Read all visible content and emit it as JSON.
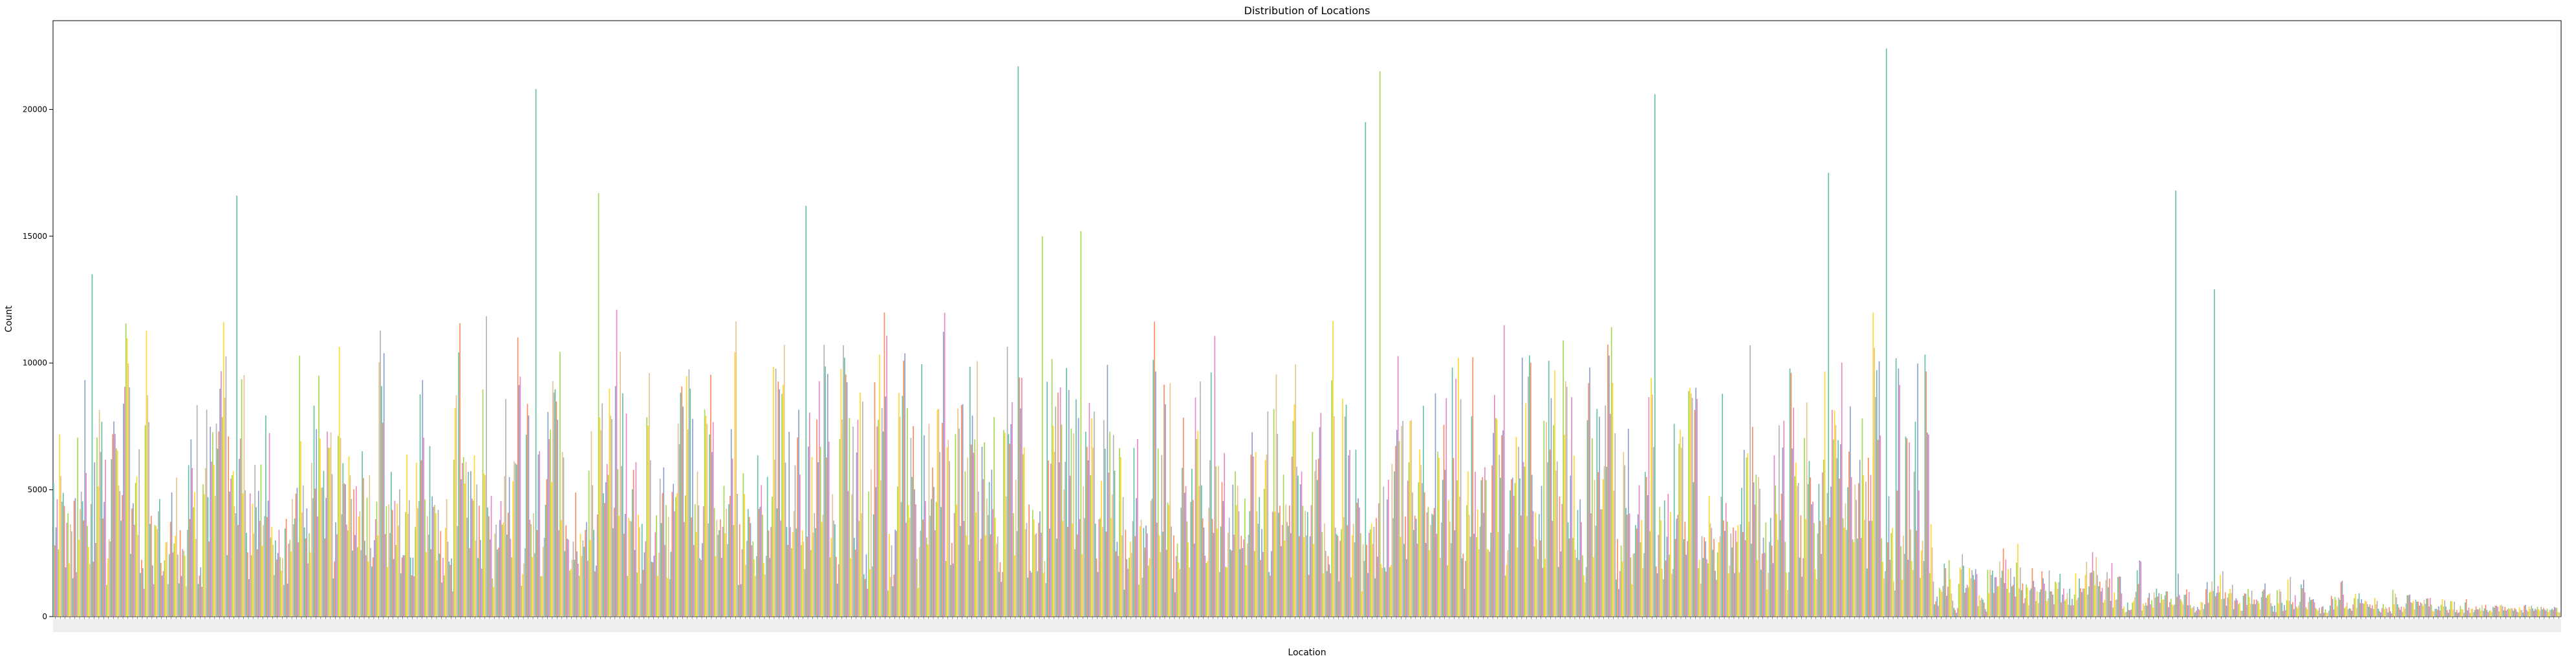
{
  "chart_data": {
    "type": "bar",
    "title": "Distribution of Locations",
    "xlabel": "Location",
    "ylabel": "Count",
    "ylim": [
      0,
      23500
    ],
    "yticks": [
      0,
      5000,
      10000,
      15000,
      20000
    ],
    "grid": false,
    "legend": "none",
    "palette": [
      "#66c2a5",
      "#fc8d62",
      "#8da0cb",
      "#e78ac3",
      "#a6d854",
      "#ffd92f",
      "#e5c494",
      "#b3b3b3"
    ],
    "highlights": [
      {
        "index": 8,
        "value": 13500
      },
      {
        "index": 38,
        "value": 16600
      },
      {
        "index": 100,
        "value": 20800
      },
      {
        "index": 113,
        "value": 16700
      },
      {
        "index": 156,
        "value": 16200
      },
      {
        "index": 200,
        "value": 21700
      },
      {
        "index": 205,
        "value": 15000
      },
      {
        "index": 213,
        "value": 15200
      },
      {
        "index": 272,
        "value": 19500
      },
      {
        "index": 275,
        "value": 21500
      },
      {
        "index": 332,
        "value": 20600
      },
      {
        "index": 368,
        "value": 17500
      },
      {
        "index": 380,
        "value": 22400
      },
      {
        "index": 440,
        "value": 16800
      },
      {
        "index": 448,
        "value": 12900
      }
    ]
  }
}
